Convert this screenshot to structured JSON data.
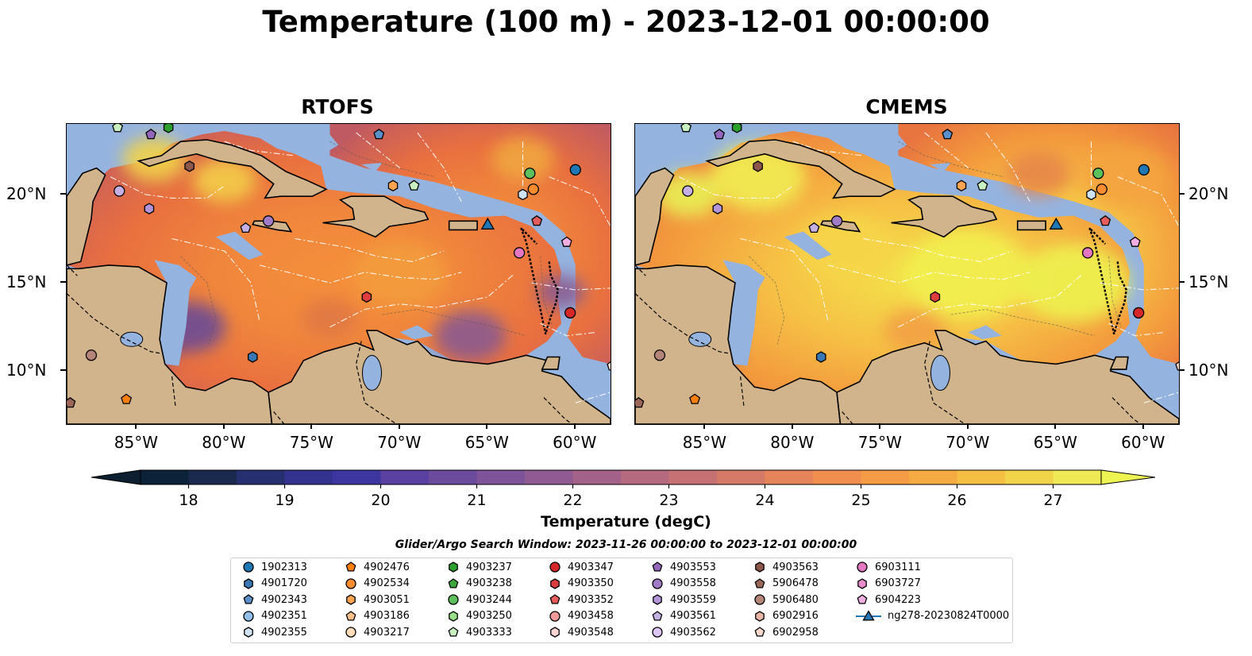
{
  "title": "Temperature (100 m) - 2023-12-01 00:00:00",
  "panels": [
    {
      "title": "RTOFS",
      "style": "rtofs"
    },
    {
      "title": "CMEMS",
      "style": "cmems"
    }
  ],
  "lon_labels": [
    "85°W",
    "80°W",
    "75°W",
    "70°W",
    "65°W",
    "60°W"
  ],
  "lat_labels": [
    "20°N",
    "15°N",
    "10°N"
  ],
  "colorbar": {
    "label": "Temperature (degC)",
    "ticks": [
      "18",
      "19",
      "20",
      "21",
      "22",
      "23",
      "24",
      "25",
      "26",
      "27"
    ],
    "range": [
      18,
      27
    ]
  },
  "search_window": "Glider/Argo Search Window: 2023-11-26 00:00:00 to 2023-12-01 00:00:00",
  "legend": [
    [
      {
        "label": "1902313",
        "marker": "circle",
        "color": "#1f77b4"
      },
      {
        "label": "4901720",
        "marker": "hexagon",
        "color": "#3a78b5"
      },
      {
        "label": "4902343",
        "marker": "pentagon",
        "color": "#5a8fca"
      },
      {
        "label": "4902351",
        "marker": "circle",
        "color": "#92c0e6"
      },
      {
        "label": "4902355",
        "marker": "hexagon",
        "color": "#cfe3f5"
      }
    ],
    [
      {
        "label": "4902476",
        "marker": "pentagon",
        "color": "#ff7f0e"
      },
      {
        "label": "4902534",
        "marker": "circle",
        "color": "#ff8c2e"
      },
      {
        "label": "4903051",
        "marker": "hexagon",
        "color": "#ffa552"
      },
      {
        "label": "4903186",
        "marker": "pentagon",
        "color": "#ffc08a"
      },
      {
        "label": "4903217",
        "marker": "circle",
        "color": "#ffddb8"
      }
    ],
    [
      {
        "label": "4903237",
        "marker": "hexagon",
        "color": "#2ca02c"
      },
      {
        "label": "4903238",
        "marker": "pentagon",
        "color": "#3aa83a"
      },
      {
        "label": "4903244",
        "marker": "circle",
        "color": "#5cc05c"
      },
      {
        "label": "4903250",
        "marker": "hexagon",
        "color": "#98df8a"
      },
      {
        "label": "4903333",
        "marker": "pentagon",
        "color": "#c8f0c0"
      }
    ],
    [
      {
        "label": "4903347",
        "marker": "circle",
        "color": "#d62728"
      },
      {
        "label": "4903350",
        "marker": "hexagon",
        "color": "#dc3e3f"
      },
      {
        "label": "4903352",
        "marker": "pentagon",
        "color": "#e65c5c"
      },
      {
        "label": "4903458",
        "marker": "circle",
        "color": "#f09a9a"
      },
      {
        "label": "4903548",
        "marker": "hexagon",
        "color": "#fbd4d4"
      }
    ],
    [
      {
        "label": "4903553",
        "marker": "pentagon",
        "color": "#9467bd"
      },
      {
        "label": "4903558",
        "marker": "circle",
        "color": "#a07cc8"
      },
      {
        "label": "4903559",
        "marker": "hexagon",
        "color": "#b394d8"
      },
      {
        "label": "4903561",
        "marker": "pentagon",
        "color": "#c5b0e4"
      },
      {
        "label": "4903562",
        "marker": "circle",
        "color": "#ddc8f5"
      }
    ],
    [
      {
        "label": "4903563",
        "marker": "hexagon",
        "color": "#8c564b"
      },
      {
        "label": "5906478",
        "marker": "pentagon",
        "color": "#9a6658"
      },
      {
        "label": "5906480",
        "marker": "circle",
        "color": "#b5857a"
      },
      {
        "label": "6902916",
        "marker": "hexagon",
        "color": "#e8b4a4"
      },
      {
        "label": "6902958",
        "marker": "pentagon",
        "color": "#fbd8cc"
      }
    ],
    [
      {
        "label": "6903111",
        "marker": "circle",
        "color": "#e377c2"
      },
      {
        "label": "6903727",
        "marker": "hexagon",
        "color": "#e88ccc"
      },
      {
        "label": "6904223",
        "marker": "pentagon",
        "color": "#f2aee0"
      },
      {
        "label": "ng278-20230824T0000",
        "marker": "triangle-line",
        "color": "#1f77b4"
      }
    ]
  ],
  "floats": [
    {
      "lon": -60.0,
      "lat": 21.4,
      "marker": "circle",
      "color": "#1f77b4"
    },
    {
      "lon": -78.4,
      "lat": 10.8,
      "marker": "hexagon",
      "color": "#3a78b5"
    },
    {
      "lon": -71.2,
      "lat": 23.4,
      "marker": "pentagon",
      "color": "#5a8fca"
    },
    {
      "lon": -86.0,
      "lat": 20.2,
      "marker": "circle",
      "color": "#c5b0e4"
    },
    {
      "lon": -63.0,
      "lat": 20.0,
      "marker": "hexagon",
      "color": "#cfe3f5"
    },
    {
      "lon": -85.6,
      "lat": 8.4,
      "marker": "pentagon",
      "color": "#ff7f0e"
    },
    {
      "lon": -62.4,
      "lat": 20.3,
      "marker": "circle",
      "color": "#ff8c2e"
    },
    {
      "lon": -70.4,
      "lat": 20.5,
      "marker": "hexagon",
      "color": "#ffa552"
    },
    {
      "lon": -82.0,
      "lat": 21.6,
      "marker": "hexagon",
      "color": "#8c564b"
    },
    {
      "lon": -62.6,
      "lat": 21.2,
      "marker": "circle",
      "color": "#5cc05c"
    },
    {
      "lon": -69.2,
      "lat": 20.5,
      "marker": "pentagon",
      "color": "#c8f0c0"
    },
    {
      "lon": -60.3,
      "lat": 13.3,
      "marker": "circle",
      "color": "#d62728"
    },
    {
      "lon": -71.9,
      "lat": 14.2,
      "marker": "hexagon",
      "color": "#dc3e3f"
    },
    {
      "lon": -62.2,
      "lat": 18.5,
      "marker": "pentagon",
      "color": "#e65c5c"
    },
    {
      "lon": -84.2,
      "lat": 23.4,
      "marker": "pentagon",
      "color": "#9467bd"
    },
    {
      "lon": -77.5,
      "lat": 18.5,
      "marker": "circle",
      "color": "#a07cc8"
    },
    {
      "lon": -84.3,
      "lat": 19.2,
      "marker": "hexagon",
      "color": "#b394d8"
    },
    {
      "lon": -78.8,
      "lat": 18.1,
      "marker": "pentagon",
      "color": "#c5b0e4"
    },
    {
      "lon": -87.6,
      "lat": 10.9,
      "marker": "circle",
      "color": "#b5857a"
    },
    {
      "lon": -88.8,
      "lat": 8.2,
      "marker": "pentagon",
      "color": "#9a6658"
    },
    {
      "lon": -63.2,
      "lat": 16.7,
      "marker": "circle",
      "color": "#e377c2"
    },
    {
      "lon": -60.5,
      "lat": 17.3,
      "marker": "pentagon",
      "color": "#f2aee0"
    },
    {
      "lon": -57.9,
      "lat": 10.3,
      "marker": "pentagon",
      "color": "#fbd8cc"
    },
    {
      "lon": -86.1,
      "lat": 23.8,
      "marker": "pentagon",
      "color": "#c8f0c0"
    },
    {
      "lon": -83.2,
      "lat": 23.8,
      "marker": "hexagon",
      "color": "#2ca02c"
    }
  ],
  "glider": {
    "lon": -65.0,
    "lat": 18.2,
    "color": "#1f77b4"
  }
}
